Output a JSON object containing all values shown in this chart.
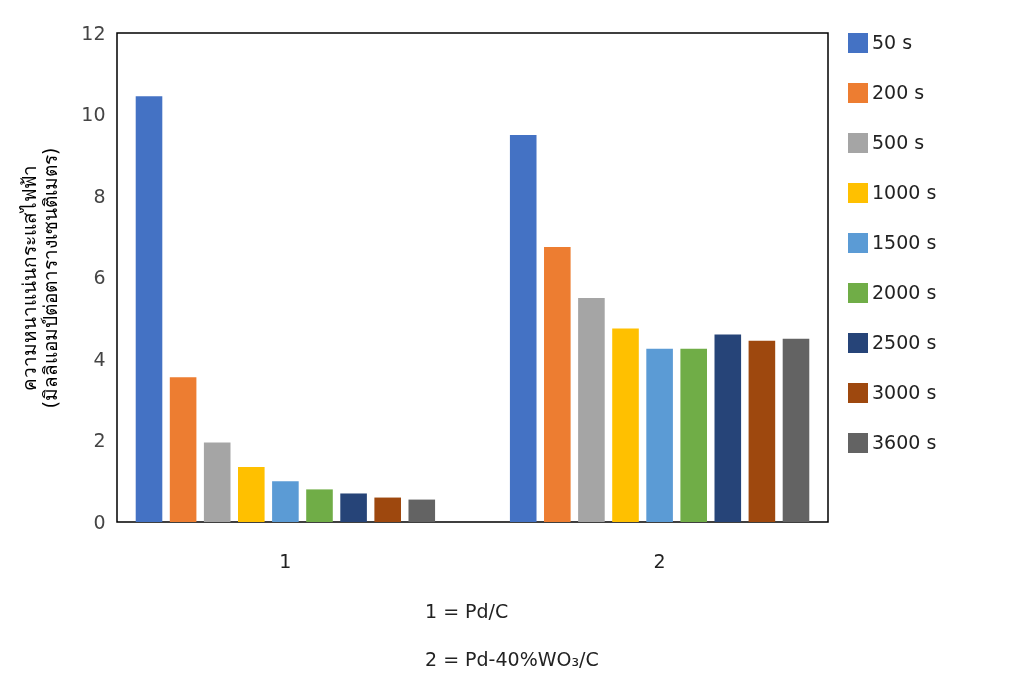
{
  "chart_data": {
    "type": "bar",
    "ylabel": "ความหนาแน่นกระแสไฟฟ้า\n(มิลลิแอมป์ต่อตารางเซนติเมตร)",
    "categories": [
      "1",
      "2"
    ],
    "series": [
      {
        "name": "50 s",
        "color": "#4472c4",
        "values": [
          10.45,
          9.5
        ]
      },
      {
        "name": "200 s",
        "color": "#ed7d31",
        "values": [
          3.55,
          6.75
        ]
      },
      {
        "name": "500 s",
        "color": "#a5a5a5",
        "values": [
          1.95,
          5.5
        ]
      },
      {
        "name": "1000 s",
        "color": "#ffc000",
        "values": [
          1.35,
          4.75
        ]
      },
      {
        "name": "1500 s",
        "color": "#5b9bd5",
        "values": [
          1.0,
          4.25
        ]
      },
      {
        "name": "2000 s",
        "color": "#70ad47",
        "values": [
          0.8,
          4.25
        ]
      },
      {
        "name": "2500 s",
        "color": "#264478",
        "values": [
          0.7,
          4.6
        ]
      },
      {
        "name": "3000 s",
        "color": "#9e480e",
        "values": [
          0.6,
          4.45
        ]
      },
      {
        "name": "3600 s",
        "color": "#636363",
        "values": [
          0.55,
          4.5
        ]
      }
    ],
    "ylim": [
      0,
      12
    ],
    "yticks": [
      0,
      2,
      4,
      6,
      8,
      10,
      12
    ],
    "grid": false,
    "legend": "right",
    "annotations": [
      "1 = Pd/C",
      "2 = Pd-40%WO₃/C"
    ]
  }
}
